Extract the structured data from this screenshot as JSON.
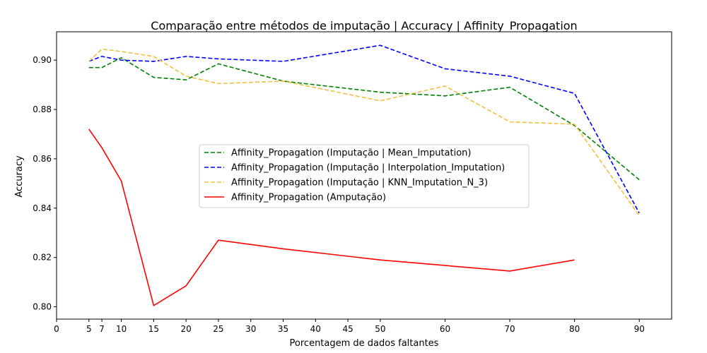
{
  "chart_data": {
    "type": "line",
    "title": "Comparação entre métodos de imputação | Accuracy | Affinity_Propagation",
    "xlabel": "Porcentagem de dados faltantes",
    "ylabel": "Accuracy",
    "xlim": [
      0,
      95
    ],
    "ylim": [
      0.795,
      0.9115
    ],
    "grid": false,
    "legend_position": "center",
    "xticks": [
      0,
      5,
      7,
      10,
      15,
      20,
      25,
      30,
      35,
      40,
      45,
      50,
      60,
      70,
      80,
      90
    ],
    "yticks": [
      0.8,
      0.82,
      0.84,
      0.86,
      0.88,
      0.9
    ],
    "ytick_labels": [
      "0.80",
      "0.82",
      "0.84",
      "0.86",
      "0.88",
      "0.90"
    ],
    "series": [
      {
        "name": "Affinity_Propagation (Imputação | Mean_Imputation)",
        "color": "#008000",
        "dash": "dashed",
        "x": [
          5,
          7,
          10,
          15,
          20,
          25,
          35,
          50,
          60,
          70,
          80,
          90
        ],
        "values": [
          0.897,
          0.897,
          0.901,
          0.893,
          0.892,
          0.8985,
          0.8915,
          0.887,
          0.8855,
          0.889,
          0.8735,
          0.8515
        ]
      },
      {
        "name": "Affinity_Propagation (Imputação | Interpolation_Imputation)",
        "color": "#0000ff",
        "dash": "dashed",
        "x": [
          5,
          7,
          10,
          15,
          20,
          25,
          35,
          50,
          60,
          70,
          80,
          90
        ],
        "values": [
          0.8995,
          0.9015,
          0.9,
          0.8995,
          0.9015,
          0.9005,
          0.8995,
          0.906,
          0.8965,
          0.8935,
          0.8865,
          0.838
        ]
      },
      {
        "name": "Affinity_Propagation (Imputação | KNN_Imputation_N_3)",
        "color": "#f0c040",
        "dash": "dashed",
        "x": [
          5,
          7,
          10,
          15,
          20,
          25,
          35,
          50,
          60,
          70,
          80,
          90
        ],
        "values": [
          0.8995,
          0.9045,
          0.9035,
          0.9015,
          0.8935,
          0.8905,
          0.8915,
          0.8835,
          0.8895,
          0.875,
          0.874,
          0.837
        ]
      },
      {
        "name": "Affinity_Propagation (Amputação)",
        "color": "#ff0000",
        "dash": "solid",
        "x": [
          5,
          7,
          10,
          15,
          20,
          25,
          35,
          50,
          70,
          80
        ],
        "values": [
          0.872,
          0.8645,
          0.851,
          0.8005,
          0.8085,
          0.827,
          0.8235,
          0.819,
          0.8145,
          0.819
        ]
      }
    ]
  }
}
